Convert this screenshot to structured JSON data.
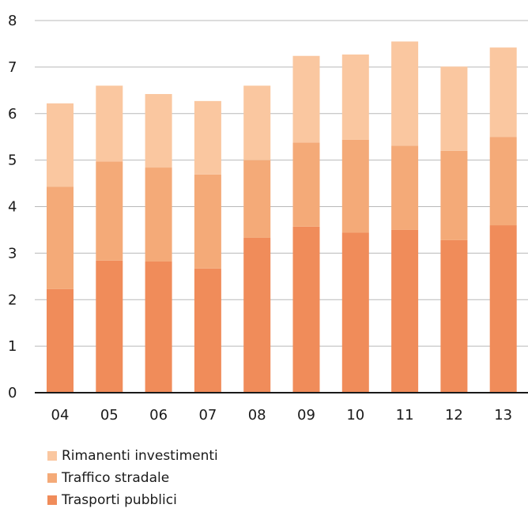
{
  "chart_data": {
    "type": "bar",
    "stacked": true,
    "categories": [
      "04",
      "05",
      "06",
      "07",
      "08",
      "09",
      "10",
      "11",
      "12",
      "13"
    ],
    "series": [
      {
        "name": "Trasporti pubblici",
        "color": "#f08c5a",
        "values": [
          2.23,
          2.84,
          2.82,
          2.67,
          3.33,
          3.57,
          3.44,
          3.5,
          3.28,
          3.6
        ]
      },
      {
        "name": "Traffico stradale",
        "color": "#f4aa78",
        "values": [
          2.2,
          2.13,
          2.02,
          2.02,
          1.67,
          1.81,
          2.0,
          1.81,
          1.92,
          1.9
        ]
      },
      {
        "name": "Rimanenti investimenti",
        "color": "#fac7a0",
        "values": [
          1.79,
          1.63,
          1.58,
          1.58,
          1.6,
          1.86,
          1.83,
          2.24,
          1.81,
          1.92
        ]
      }
    ],
    "ylim": [
      0,
      8
    ],
    "yticks": [
      "0",
      "1",
      "2",
      "3",
      "4",
      "5",
      "6",
      "7",
      "8"
    ],
    "grid": true,
    "legend_position": "bottom-left"
  }
}
